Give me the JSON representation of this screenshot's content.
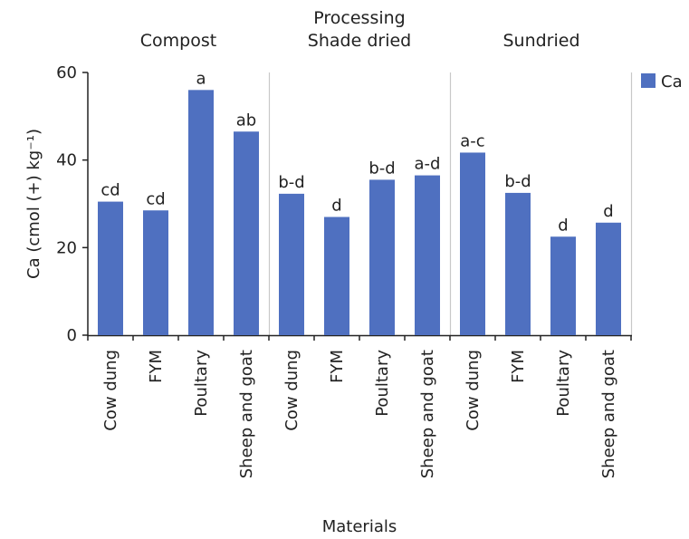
{
  "chart_data": {
    "type": "bar",
    "top_title": "Processing",
    "groups": [
      "Compost",
      "Shade dried",
      "Sundried"
    ],
    "categories": [
      "Cow dung",
      "FYM",
      "Poultary",
      "Sheep and goat",
      "Cow dung",
      "FYM",
      "Poultary",
      "Sheep and goat",
      "Cow dung",
      "FYM",
      "Poultary",
      "Sheep and goat"
    ],
    "series": [
      {
        "name": "Ca",
        "color": "#4f70c0",
        "values": [
          30.5,
          28.5,
          56,
          46.5,
          32.3,
          27,
          35.5,
          36.5,
          41.7,
          32.5,
          22.5,
          25.7
        ],
        "labels": [
          "cd",
          "cd",
          "a",
          "ab",
          "b-d",
          "d",
          "b-d",
          "a-d",
          "a-c",
          "b-d",
          "d",
          "d"
        ]
      }
    ],
    "xlabel": "Materials",
    "ylabel": "Ca (cmol (+) kg⁻¹)",
    "yticks": [
      0,
      20,
      40,
      60
    ],
    "ylim": [
      0,
      60
    ],
    "legend": "top-right",
    "grid": false
  }
}
